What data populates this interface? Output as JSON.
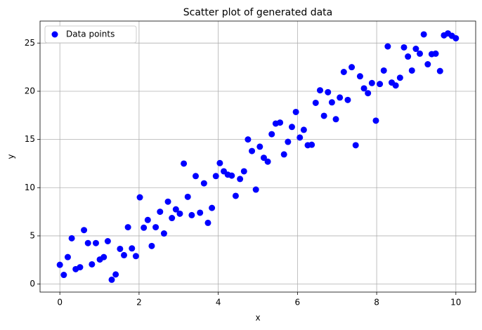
{
  "chart_data": {
    "type": "scatter",
    "title": "Scatter plot of generated data",
    "x_label": "x",
    "y_label": "y",
    "series": [
      {
        "name": "Data points",
        "color": "#0000ff",
        "x": [
          0,
          0.1,
          0.2,
          0.3,
          0.4,
          0.51,
          0.61,
          0.71,
          0.81,
          0.91,
          1.01,
          1.11,
          1.21,
          1.31,
          1.41,
          1.52,
          1.62,
          1.72,
          1.82,
          1.92,
          2.02,
          2.12,
          2.22,
          2.32,
          2.42,
          2.53,
          2.63,
          2.73,
          2.83,
          2.93,
          3.03,
          3.13,
          3.23,
          3.33,
          3.43,
          3.54,
          3.64,
          3.74,
          3.84,
          3.94,
          4.04,
          4.14,
          4.24,
          4.34,
          4.44,
          4.55,
          4.65,
          4.75,
          4.85,
          4.95,
          5.05,
          5.15,
          5.25,
          5.35,
          5.45,
          5.56,
          5.66,
          5.76,
          5.86,
          5.96,
          6.06,
          6.16,
          6.26,
          6.36,
          6.46,
          6.57,
          6.67,
          6.77,
          6.87,
          6.97,
          7.07,
          7.17,
          7.27,
          7.37,
          7.47,
          7.58,
          7.68,
          7.78,
          7.88,
          7.98,
          8.08,
          8.18,
          8.28,
          8.38,
          8.48,
          8.59,
          8.69,
          8.79,
          8.89,
          8.99,
          9.09,
          9.19,
          9.29,
          9.39,
          9.49,
          9.6,
          9.7,
          9.8,
          9.9,
          10
        ],
        "values": [
          2.0,
          0.95,
          2.8,
          4.75,
          1.55,
          1.75,
          5.6,
          4.25,
          2.05,
          4.25,
          2.55,
          2.8,
          4.45,
          0.45,
          1.0,
          3.65,
          3.0,
          5.9,
          3.7,
          2.9,
          9.0,
          5.85,
          6.65,
          3.95,
          5.9,
          7.5,
          5.25,
          8.55,
          6.85,
          7.75,
          7.3,
          12.5,
          9.05,
          7.15,
          11.2,
          7.4,
          10.45,
          6.35,
          7.9,
          11.2,
          12.55,
          11.7,
          11.35,
          11.25,
          9.15,
          10.9,
          11.7,
          15.0,
          13.8,
          9.8,
          14.25,
          13.1,
          12.7,
          15.55,
          16.65,
          16.75,
          13.45,
          14.75,
          16.3,
          17.85,
          15.2,
          16.0,
          14.4,
          14.45,
          18.8,
          20.1,
          17.45,
          19.9,
          18.85,
          17.1,
          19.35,
          22.0,
          19.1,
          22.5,
          14.4,
          21.55,
          20.3,
          19.8,
          20.85,
          16.95,
          20.75,
          22.15,
          24.65,
          20.9,
          20.6,
          21.4,
          24.55,
          23.6,
          22.15,
          24.4,
          23.9,
          25.9,
          22.8,
          23.85,
          23.9,
          22.1,
          25.8,
          26.0,
          25.75,
          25.5
        ]
      }
    ],
    "xlim": [
      -0.5,
      10.5
    ],
    "ylim": [
      -0.83,
      27.28
    ],
    "xticks": [
      0,
      2,
      4,
      6,
      8,
      10
    ],
    "yticks": [
      0,
      5,
      10,
      15,
      20,
      25
    ],
    "grid": true,
    "legend": "upper-left"
  }
}
